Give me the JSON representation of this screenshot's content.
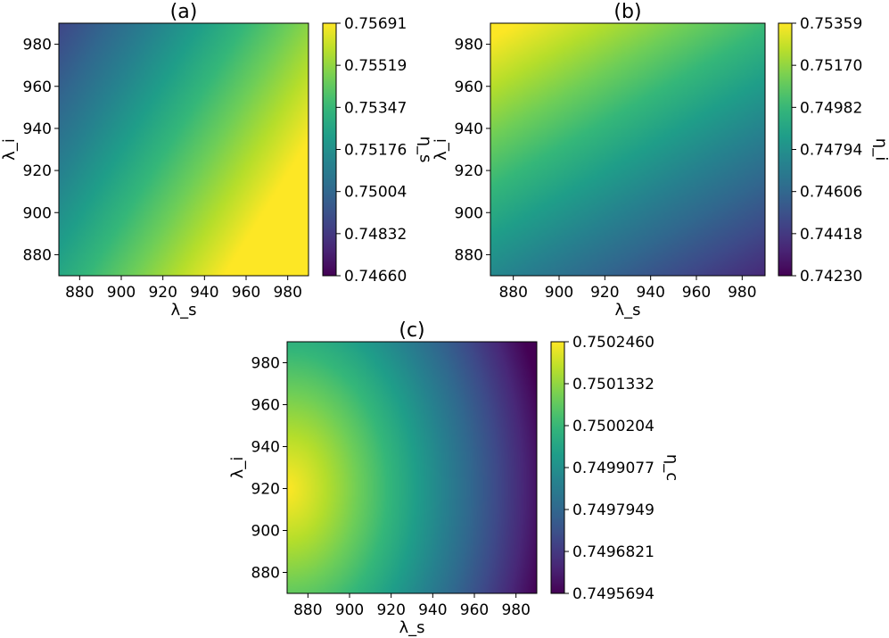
{
  "chart_data": [
    {
      "type": "heatmap",
      "title": "(a)",
      "xlabel": "λ_s",
      "ylabel": "λ_i",
      "xlim": [
        870,
        990
      ],
      "ylim": [
        870,
        990
      ],
      "xticks": [
        880,
        900,
        920,
        940,
        960,
        980
      ],
      "yticks": [
        880,
        900,
        920,
        940,
        960,
        980
      ],
      "colormap": "viridis",
      "colorbar": {
        "label": "η_s",
        "min": 0.7466,
        "max": 0.75691,
        "ticks": [
          "0.74660",
          "0.74832",
          "0.75004",
          "0.75176",
          "0.75347",
          "0.75519",
          "0.75691"
        ]
      },
      "field": {
        "type": "linear",
        "dx": 5.26e-05,
        "dy": -3.33e-05,
        "ref_x": 870,
        "ref_y": 870,
        "ref_value": 0.75275
      }
    },
    {
      "type": "heatmap",
      "title": "(b)",
      "xlabel": "λ_s",
      "ylabel": "λ_i",
      "xlim": [
        870,
        990
      ],
      "ylim": [
        870,
        990
      ],
      "xticks": [
        880,
        900,
        920,
        940,
        960,
        980
      ],
      "yticks": [
        880,
        900,
        920,
        940,
        960,
        980
      ],
      "colormap": "viridis",
      "colorbar": {
        "label": "η_i",
        "min": 0.7423,
        "max": 0.75359,
        "ticks": [
          "0.74230",
          "0.74418",
          "0.74606",
          "0.74794",
          "0.74982",
          "0.75170",
          "0.75359"
        ]
      },
      "field": {
        "type": "linear",
        "dx": -3.33e-05,
        "dy": 5.33e-05,
        "ref_x": 870,
        "ref_y": 870,
        "ref_value": 0.74759
      }
    },
    {
      "type": "heatmap",
      "title": "(c)",
      "xlabel": "λ_s",
      "ylabel": "λ_i",
      "xlim": [
        870,
        990
      ],
      "ylim": [
        870,
        990
      ],
      "xticks": [
        880,
        900,
        920,
        940,
        960,
        980
      ],
      "yticks": [
        880,
        900,
        920,
        940,
        960,
        980
      ],
      "colormap": "viridis",
      "colorbar": {
        "label": "η_c",
        "min": 0.7495694,
        "max": 0.750246,
        "ticks": [
          "0.7495694",
          "0.7496821",
          "0.7497949",
          "0.7499077",
          "0.7500204",
          "0.7501332",
          "0.7502460"
        ]
      },
      "field": {
        "type": "ridge",
        "peak_x": 870,
        "peak_y": 920,
        "peak_value": 0.750246,
        "corner_x": 990,
        "corner_y": 870,
        "corner_value": 0.7495694
      }
    }
  ]
}
